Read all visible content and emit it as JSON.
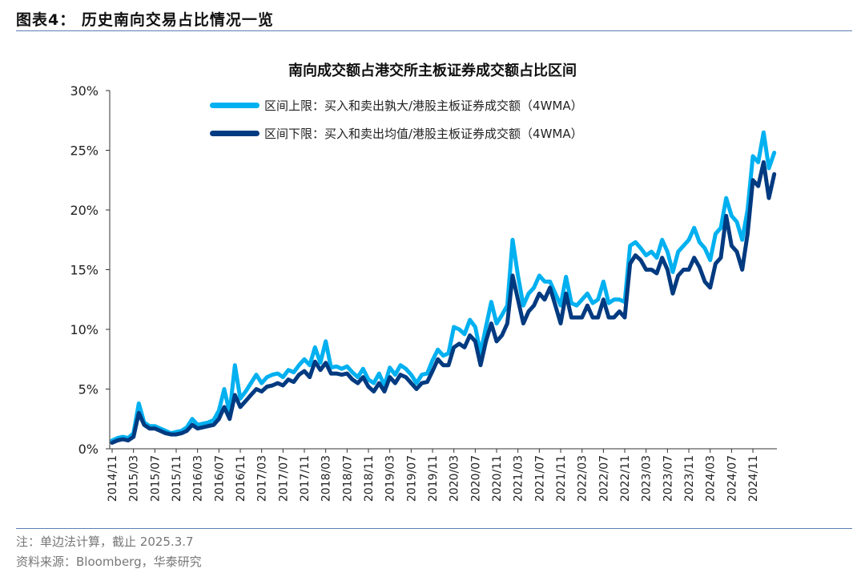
{
  "header": {
    "title": "图表4：  历史南向交易占比情况一览"
  },
  "footer": {
    "note": "注：单边法计算，截止 2025.3.7",
    "source": "资料来源：Bloomberg，华泰研究"
  },
  "colors": {
    "upper": "#00b0f0",
    "lower": "#003a80",
    "rule": "#5b7fb5"
  },
  "chart_data": {
    "type": "line",
    "title": "南向成交额占港交所主板证券成交额占比区间",
    "xlabel": "",
    "ylabel": "",
    "ylim": [
      0,
      30
    ],
    "yticks": [
      "0%",
      "5%",
      "10%",
      "15%",
      "20%",
      "25%",
      "30%"
    ],
    "xticks": [
      "2014/11",
      "2015/03",
      "2015/07",
      "2015/11",
      "2016/03",
      "2016/07",
      "2016/11",
      "2017/03",
      "2017/07",
      "2017/11",
      "2018/03",
      "2018/07",
      "2018/11",
      "2019/03",
      "2019/07",
      "2019/11",
      "2020/03",
      "2020/07",
      "2020/11",
      "2021/03",
      "2021/07",
      "2021/11",
      "2022/03",
      "2022/07",
      "2022/11",
      "2023/03",
      "2023/07",
      "2023/11",
      "2024/03",
      "2024/07",
      "2024/11"
    ],
    "x_start": "2014/11",
    "x_end": "2025/03",
    "x_step": "monthly",
    "grid": false,
    "legend_position": "top",
    "series": [
      {
        "name": "区间上限：买入和卖出孰大/港股主板证券成交额（4WMA）",
        "color": "#00b0f0",
        "values": [
          0.7,
          0.9,
          1.0,
          0.9,
          1.3,
          3.8,
          2.2,
          1.9,
          1.9,
          1.7,
          1.5,
          1.3,
          1.4,
          1.5,
          1.8,
          2.5,
          2.0,
          2.1,
          2.2,
          2.4,
          3.2,
          5.0,
          3.0,
          7.0,
          4.2,
          4.8,
          5.5,
          6.2,
          5.5,
          6.0,
          6.2,
          6.3,
          6.0,
          6.6,
          6.4,
          7.0,
          7.5,
          7.0,
          8.5,
          7.2,
          9.0,
          6.8,
          6.9,
          6.7,
          6.9,
          6.4,
          6.0,
          6.7,
          5.8,
          5.5,
          6.3,
          5.3,
          6.8,
          6.2,
          7.0,
          6.7,
          6.2,
          5.5,
          6.2,
          6.3,
          7.4,
          8.3,
          7.8,
          8.0,
          10.2,
          10.0,
          9.6,
          10.8,
          10.2,
          8.0,
          10.2,
          12.3,
          10.5,
          11.2,
          12.0,
          17.5,
          14.5,
          12.0,
          13.0,
          13.5,
          14.5,
          14.0,
          14.0,
          13.0,
          12.0,
          14.4,
          12.2,
          12.0,
          12.5,
          13.0,
          12.2,
          12.5,
          14.0,
          12.2,
          12.5,
          12.5,
          12.3,
          17.0,
          17.3,
          16.8,
          16.2,
          16.5,
          16.0,
          17.5,
          16.5,
          14.8,
          16.5,
          17.0,
          17.5,
          18.5,
          17.3,
          16.8,
          15.8,
          18.0,
          18.5,
          21.0,
          19.5,
          19.0,
          17.5,
          20.0,
          24.5,
          24.0,
          26.5,
          23.5,
          24.8
        ]
      },
      {
        "name": "区间下限：买入和卖出均值/港股主板证券成交额（4WMA）",
        "color": "#003a80",
        "values": [
          0.5,
          0.7,
          0.8,
          0.7,
          1.0,
          3.0,
          2.0,
          1.7,
          1.7,
          1.5,
          1.3,
          1.2,
          1.2,
          1.3,
          1.5,
          2.0,
          1.7,
          1.8,
          1.9,
          2.0,
          2.5,
          3.5,
          2.5,
          4.5,
          3.5,
          4.0,
          4.5,
          5.0,
          4.8,
          5.2,
          5.3,
          5.5,
          5.3,
          5.8,
          5.6,
          6.2,
          6.5,
          6.0,
          7.3,
          6.6,
          7.2,
          6.3,
          6.3,
          6.2,
          6.3,
          5.8,
          5.5,
          6.0,
          5.2,
          4.8,
          5.5,
          4.8,
          6.0,
          5.5,
          6.2,
          6.0,
          5.5,
          5.0,
          5.5,
          5.6,
          6.5,
          7.5,
          7.0,
          7.0,
          8.5,
          8.8,
          8.5,
          9.5,
          9.0,
          7.0,
          9.0,
          10.5,
          9.0,
          9.5,
          10.5,
          14.5,
          12.5,
          10.5,
          11.5,
          12.0,
          13.0,
          12.5,
          13.5,
          12.0,
          10.5,
          13.0,
          11.0,
          11.0,
          11.0,
          12.0,
          11.0,
          11.0,
          12.5,
          11.0,
          11.0,
          11.5,
          11.0,
          15.5,
          16.2,
          15.8,
          15.0,
          15.0,
          14.7,
          16.0,
          15.0,
          13.0,
          14.5,
          15.0,
          15.0,
          16.0,
          15.2,
          14.0,
          13.5,
          15.5,
          16.0,
          19.5,
          17.0,
          16.5,
          15.0,
          18.0,
          22.5,
          22.0,
          24.0,
          21.0,
          23.0
        ]
      }
    ]
  }
}
